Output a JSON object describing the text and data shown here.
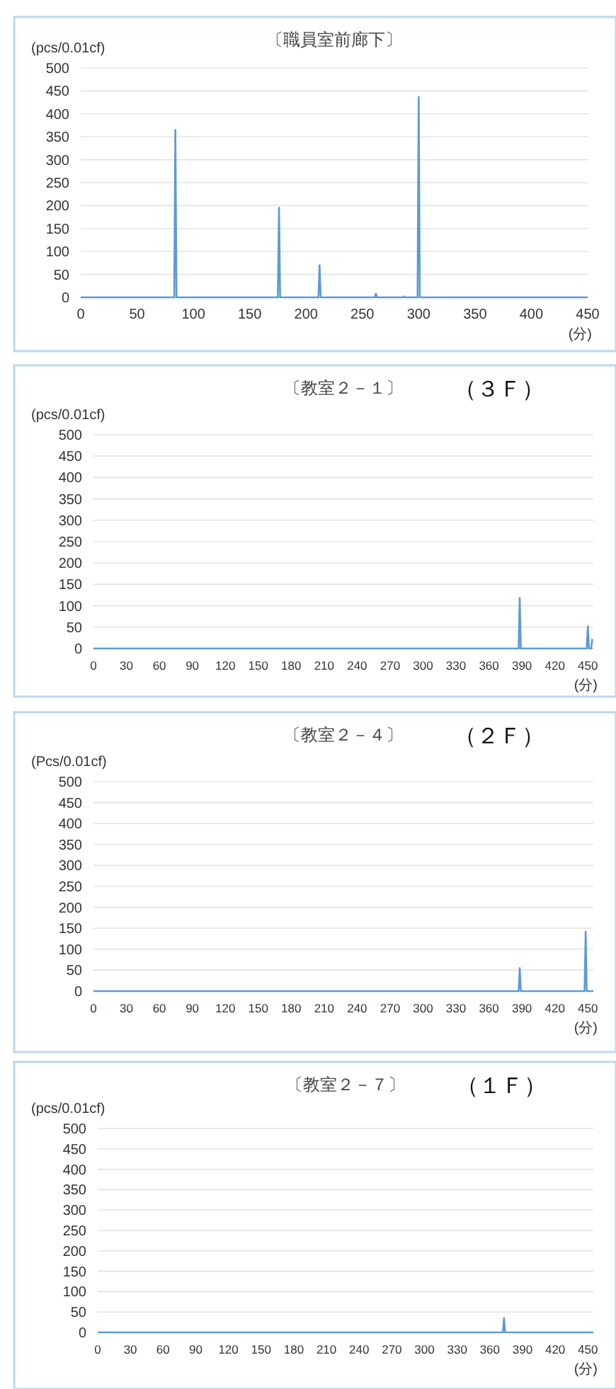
{
  "chart_data": [
    {
      "type": "line",
      "title": "〔職員室前廊下〕",
      "ylabel": "(pcs/0.01cf)",
      "xlabel": "(分)",
      "color": "#5b9bd5",
      "grid": "y",
      "x": [
        0,
        83,
        84,
        85,
        175,
        176,
        177,
        211,
        212,
        213,
        261,
        262,
        263,
        286,
        287,
        288,
        299,
        300,
        301,
        450
      ],
      "values": [
        0,
        0,
        365,
        0,
        0,
        195,
        0,
        0,
        70,
        0,
        0,
        8,
        0,
        0,
        2,
        0,
        0,
        437,
        0,
        0
      ],
      "xlim": [
        0,
        450
      ],
      "xticks": [
        0,
        50,
        100,
        150,
        200,
        250,
        300,
        350,
        400,
        450
      ],
      "ylim": [
        0,
        500
      ],
      "yticks": [
        0,
        50,
        100,
        150,
        200,
        250,
        300,
        350,
        400,
        450,
        500
      ]
    },
    {
      "type": "line",
      "title": "〔教室２－１〕",
      "annotations": [
        "（３Ｆ）"
      ],
      "ylabel": "(pcs/0.01cf)",
      "xlabel": "(分)",
      "color": "#5b9bd5",
      "grid": "y",
      "x": [
        0,
        387,
        388,
        389,
        449,
        450,
        451,
        453,
        454
      ],
      "values": [
        0,
        0,
        118,
        0,
        0,
        52,
        0,
        0,
        22
      ],
      "xlim": [
        0,
        455
      ],
      "xticks": [
        0,
        30,
        60,
        90,
        120,
        150,
        180,
        210,
        240,
        270,
        300,
        330,
        360,
        390,
        420,
        450
      ],
      "ylim": [
        0,
        500
      ],
      "yticks": [
        0,
        50,
        100,
        150,
        200,
        250,
        300,
        350,
        400,
        450,
        500
      ]
    },
    {
      "type": "line",
      "title": "〔教室２－４〕",
      "annotations": [
        "（２Ｆ）"
      ],
      "ylabel": "(Pcs/0.01cf)",
      "xlabel": "(分)",
      "color": "#5b9bd5",
      "grid": "y",
      "x": [
        0,
        387,
        388,
        389,
        447,
        448,
        449,
        455
      ],
      "values": [
        0,
        0,
        55,
        0,
        0,
        142,
        0,
        0
      ],
      "xlim": [
        0,
        455
      ],
      "xticks": [
        0,
        30,
        60,
        90,
        120,
        150,
        180,
        210,
        240,
        270,
        300,
        330,
        360,
        390,
        420,
        450
      ],
      "ylim": [
        0,
        500
      ],
      "yticks": [
        0,
        50,
        100,
        150,
        200,
        250,
        300,
        350,
        400,
        450,
        500
      ]
    },
    {
      "type": "line",
      "title": "〔教室２－７〕",
      "annotations": [
        "（１Ｆ）"
      ],
      "ylabel": "(pcs/0.01cf)",
      "xlabel": "(分)",
      "color": "#5b9bd5",
      "grid": "y",
      "x": [
        0,
        372,
        373,
        374,
        455
      ],
      "values": [
        0,
        0,
        35,
        0,
        0
      ],
      "xlim": [
        0,
        455
      ],
      "xticks": [
        0,
        30,
        60,
        90,
        120,
        150,
        180,
        210,
        240,
        270,
        300,
        330,
        360,
        390,
        420,
        450
      ],
      "ylim": [
        0,
        500
      ],
      "yticks": [
        0,
        50,
        100,
        150,
        200,
        250,
        300,
        350,
        400,
        450,
        500
      ]
    }
  ]
}
